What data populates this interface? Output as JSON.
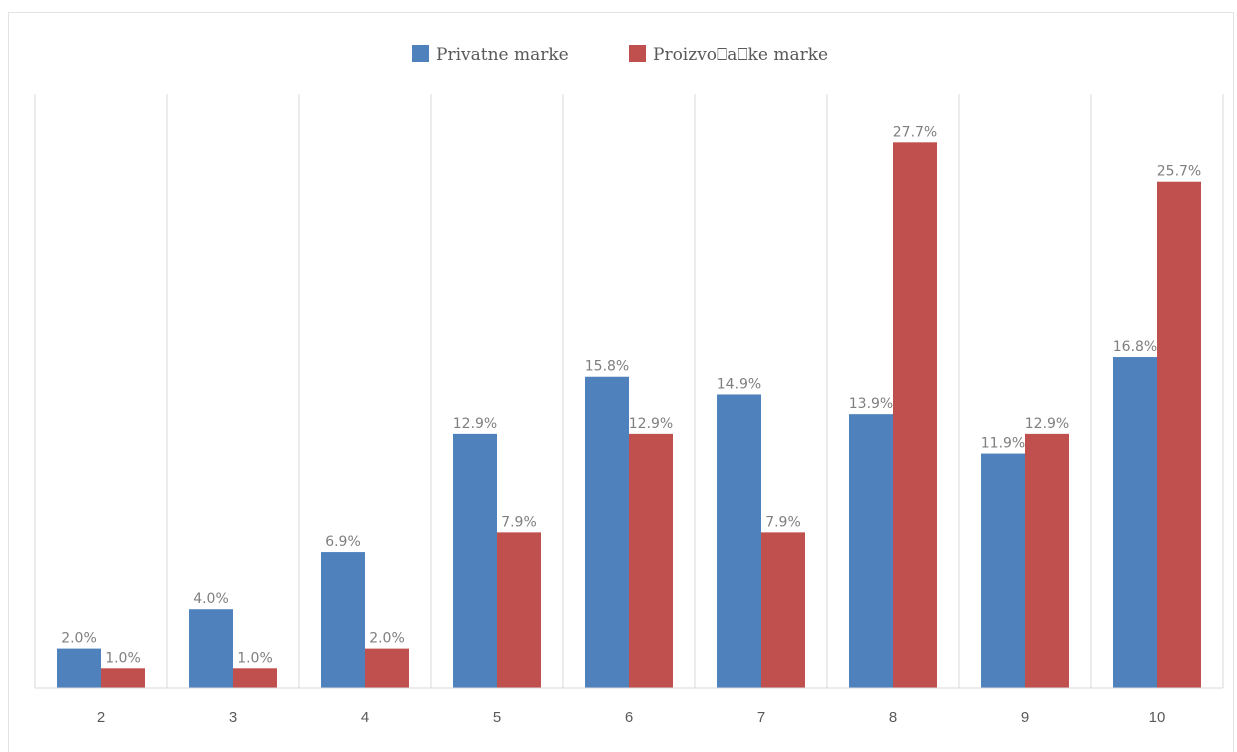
{
  "chart_data": {
    "type": "bar",
    "categories": [
      "2",
      "3",
      "4",
      "5",
      "6",
      "7",
      "8",
      "9",
      "10"
    ],
    "series": [
      {
        "name": "Privatne marke",
        "color": "#4f81bd",
        "values": [
          2.0,
          4.0,
          6.9,
          12.9,
          15.8,
          14.9,
          13.9,
          11.9,
          16.8
        ],
        "labels": [
          "2.0%",
          "4.0%",
          "6.9%",
          "12.9%",
          "15.8%",
          "14.9%",
          "13.9%",
          "11.9%",
          "16.8%"
        ]
      },
      {
        "name": "Proizvo⎕a⎕ke marke",
        "color": "#c0504d",
        "values": [
          1.0,
          1.0,
          2.0,
          7.9,
          12.9,
          7.9,
          27.7,
          12.9,
          25.7
        ],
        "labels": [
          "1.0%",
          "1.0%",
          "2.0%",
          "7.9%",
          "12.9%",
          "7.9%",
          "27.7%",
          "12.9%",
          "25.7%"
        ]
      }
    ],
    "ylim": [
      0,
      30
    ],
    "grid": "vertical category separators",
    "legend": "top-center",
    "title": "",
    "xlabel": "",
    "ylabel": ""
  }
}
